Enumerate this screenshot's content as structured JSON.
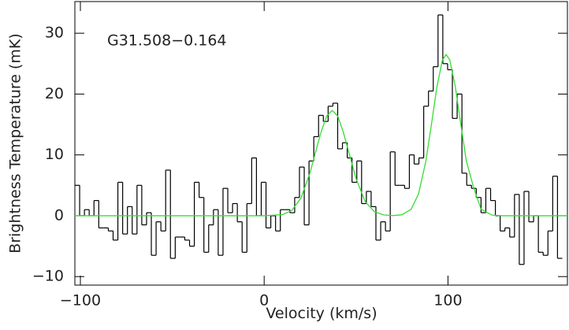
{
  "chart_data": {
    "type": "step",
    "annotation": "G31.508−0.164",
    "xlabel": "Velocity (km/s)",
    "ylabel": "Brightness Temperature (mK)",
    "xlim": [
      -103,
      165
    ],
    "ylim": [
      -11.4,
      35.2
    ],
    "xticks": [
      {
        "value": -100,
        "label": "−100"
      },
      0,
      100
    ],
    "yticks": [
      {
        "value": -10,
        "label": "−10"
      },
      0,
      10,
      20,
      30
    ],
    "series": [
      {
        "type": "step",
        "color": "#000000",
        "x": [
          -101.7,
          -99.1,
          -96.5,
          -93.9,
          -91.3,
          -88.7,
          -86.1,
          -83.5,
          -80.9,
          -78.3,
          -75.7,
          -73.1,
          -70.5,
          -67.9,
          -65.3,
          -62.7,
          -60.1,
          -57.5,
          -54.9,
          -52.3,
          -49.7,
          -47.1,
          -44.5,
          -41.9,
          -39.3,
          -36.7,
          -34.1,
          -31.5,
          -28.9,
          -26.3,
          -23.7,
          -21.1,
          -18.5,
          -15.9,
          -13.3,
          -10.7,
          -8.1,
          -5.5,
          -2.9,
          -0.3,
          2.3,
          4.9,
          7.5,
          10.1,
          12.7,
          15.3,
          17.9,
          20.5,
          23.1,
          25.7,
          28.3,
          30.9,
          33.5,
          36.1,
          38.7,
          41.3,
          43.9,
          46.5,
          49.1,
          51.7,
          54.3,
          56.9,
          59.5,
          62.1,
          64.7,
          67.3,
          69.9,
          72.5,
          75.1,
          77.7,
          80.3,
          82.9,
          85.5,
          88.1,
          90.7,
          93.3,
          95.9,
          98.5,
          101.1,
          103.7,
          106.3,
          108.9,
          111.5,
          114.1,
          116.7,
          119.3,
          121.9,
          124.5,
          127.1,
          129.7,
          132.3,
          134.9,
          137.5,
          140.1,
          142.7,
          145.3,
          147.9,
          150.5,
          153.1,
          155.7,
          158.3,
          160.9
        ],
        "values": [
          5,
          0,
          1,
          0,
          2.5,
          -2,
          -2,
          -2.5,
          -4,
          5.5,
          -3,
          1.5,
          -3,
          5,
          -1.5,
          0.5,
          -6.5,
          -1,
          -2.5,
          7.5,
          -7,
          -3.5,
          -3.5,
          -4,
          -5,
          5.5,
          3,
          -6,
          -1.5,
          1,
          -6.5,
          4.5,
          0.5,
          2,
          -1,
          -6,
          2,
          9.5,
          0,
          5.5,
          -2,
          0,
          -2.5,
          1,
          1,
          0.5,
          3,
          8,
          -1.5,
          9,
          13,
          16.5,
          15.5,
          18,
          18.5,
          11,
          12,
          9.5,
          5.5,
          9,
          2,
          4,
          1.5,
          -4,
          -1,
          -2.5,
          10.5,
          5,
          5,
          4.5,
          10,
          8.5,
          9.5,
          18,
          20.5,
          24.5,
          33,
          25,
          24,
          16,
          20,
          7,
          5,
          4.5,
          3,
          0.5,
          4.5,
          2.5,
          0,
          -2.5,
          -2,
          -3.5,
          3.5,
          -8,
          4,
          -1,
          0,
          -6,
          -6.5,
          -2.5,
          6.5,
          -7
        ]
      },
      {
        "type": "line",
        "color": "#33dd33",
        "x": [
          -103,
          0,
          10,
          15,
          20,
          25,
          28,
          31,
          34,
          37,
          40,
          43,
          46,
          50,
          55,
          60,
          65,
          70,
          75,
          80,
          84,
          88,
          91,
          94,
          97,
          99,
          101,
          104,
          107,
          110,
          114,
          118,
          124,
          130,
          165
        ],
        "values": [
          0,
          0,
          0.19,
          0.87,
          2.9,
          7.1,
          10.5,
          13.8,
          16.4,
          17.3,
          16.4,
          13.8,
          10.5,
          6.1,
          2.3,
          0.66,
          0.14,
          0.02,
          0.16,
          1.07,
          3.6,
          9.0,
          15.0,
          21.2,
          25.6,
          26.5,
          25.6,
          21.2,
          15.0,
          9.0,
          4.6,
          1.07,
          0.1,
          0,
          0
        ]
      }
    ]
  }
}
